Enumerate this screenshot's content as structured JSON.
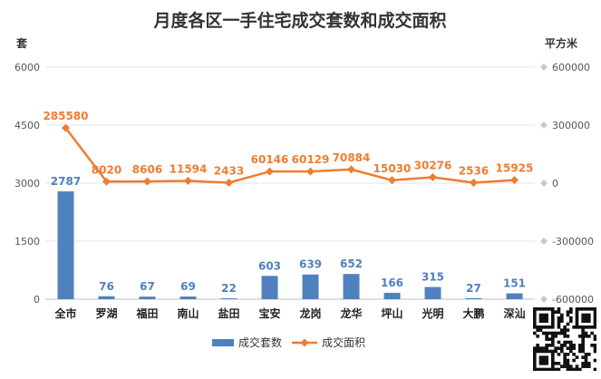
{
  "chart_data": {
    "type": "bar+line",
    "title": "月度各区一手住宅成交套数和成交面积",
    "y_left_unit": "套",
    "y_right_unit": "平方米",
    "y_left_ticks": [
      "0",
      "1500",
      "3000",
      "4500",
      "6000"
    ],
    "y_right_ticks": [
      "-600000",
      "-300000",
      "0",
      "300000",
      "600000"
    ],
    "y_left_range": [
      0,
      6000
    ],
    "y_right_range": [
      -600000,
      600000
    ],
    "categories": [
      "全市",
      "罗湖",
      "福田",
      "南山",
      "盐田",
      "宝安",
      "龙岗",
      "龙华",
      "坪山",
      "光明",
      "大鹏",
      "深汕"
    ],
    "series": [
      {
        "name": "成交套数",
        "type": "bar",
        "axis": "left",
        "color": "#4f81bd",
        "values": [
          2787,
          76,
          67,
          69,
          22,
          603,
          639,
          652,
          166,
          315,
          27,
          151
        ]
      },
      {
        "name": "成交面积",
        "type": "line",
        "axis": "right",
        "color": "#ed7d31",
        "values": [
          285580,
          8020,
          8606,
          11594,
          2433,
          60146,
          60129,
          70884,
          15030,
          30276,
          2536,
          15925
        ]
      }
    ],
    "legend_position": "bottom",
    "grid": true
  }
}
